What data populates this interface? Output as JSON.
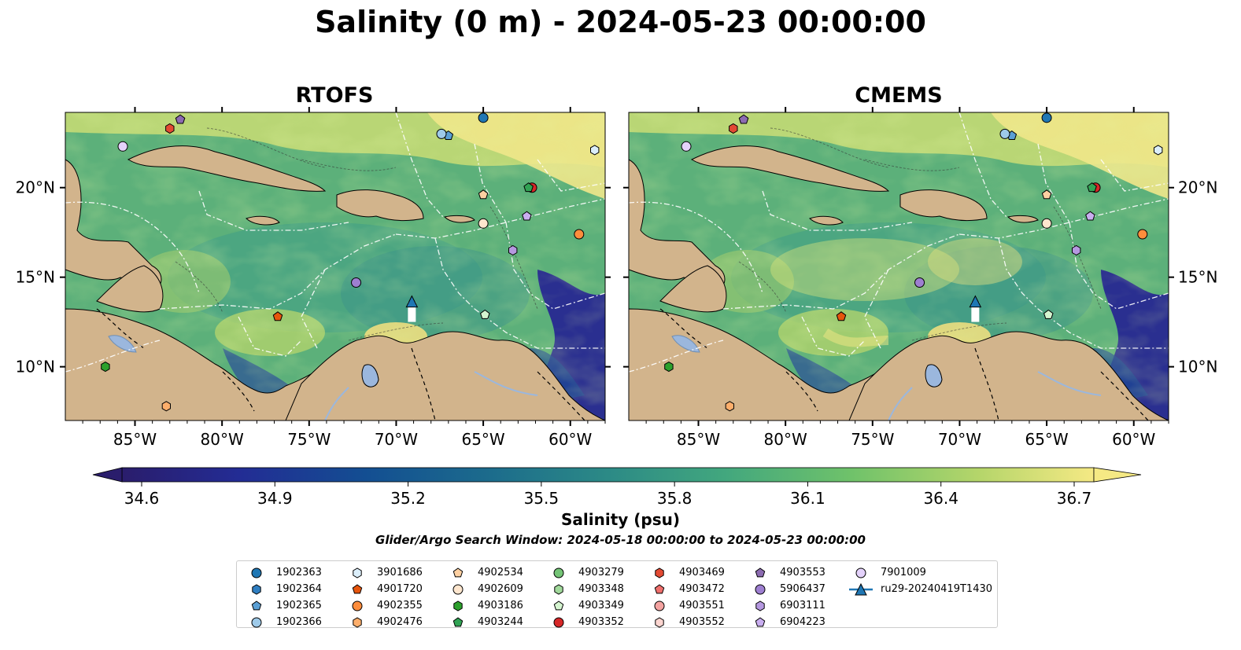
{
  "title": "Salinity (0 m) - 2024-05-23 00:00:00",
  "panels": [
    {
      "title": "RTOFS"
    },
    {
      "title": "CMEMS"
    }
  ],
  "axes": {
    "lon_ticks": [
      "85°W",
      "80°W",
      "75°W",
      "70°W",
      "65°W",
      "60°W"
    ],
    "lat_ticks": [
      "20°N",
      "15°N",
      "10°N"
    ],
    "lon_range": [
      -89,
      -58
    ],
    "lat_range": [
      7,
      24.2
    ]
  },
  "colorbar": {
    "label": "Salinity (psu)",
    "ticks": [
      "34.6",
      "34.9",
      "35.2",
      "35.5",
      "35.8",
      "36.1",
      "36.4",
      "36.7"
    ],
    "range": [
      34.6,
      36.7
    ],
    "colormap": "viridis-haline (navy to yellow)",
    "extend": "both"
  },
  "colors": {
    "land": "#d2b48c",
    "lake": "#9bb7dd",
    "salinity_low": "#2a1d6c",
    "salinity_high": "#f5e984"
  },
  "search_window": "Glider/Argo Search Window: 2024-05-18 00:00:00 to 2024-05-23 00:00:00",
  "legend": [
    {
      "label": "1902363",
      "marker": "circle",
      "color": "#1f77b4"
    },
    {
      "label": "1902364",
      "marker": "hexagon",
      "color": "#2f7ec1"
    },
    {
      "label": "1902365",
      "marker": "pentagon",
      "color": "#5a9fd4"
    },
    {
      "label": "1902366",
      "marker": "circle",
      "color": "#9ecae9"
    },
    {
      "label": "3901686",
      "marker": "hexagon",
      "color": "#dbeefa"
    },
    {
      "label": "4901720",
      "marker": "pentagon",
      "color": "#e6550d"
    },
    {
      "label": "4902355",
      "marker": "circle",
      "color": "#fd8d3c"
    },
    {
      "label": "4902476",
      "marker": "hexagon",
      "color": "#fdae6b"
    },
    {
      "label": "4902534",
      "marker": "pentagon",
      "color": "#fdd0a2"
    },
    {
      "label": "4902609",
      "marker": "circle",
      "color": "#fee6ce"
    },
    {
      "label": "4903186",
      "marker": "hexagon",
      "color": "#2ca02c"
    },
    {
      "label": "4903244",
      "marker": "pentagon",
      "color": "#31a354"
    },
    {
      "label": "4903279",
      "marker": "circle",
      "color": "#74c476"
    },
    {
      "label": "4903348",
      "marker": "hexagon",
      "color": "#a1d99b"
    },
    {
      "label": "4903349",
      "marker": "pentagon",
      "color": "#d5f5d0"
    },
    {
      "label": "4903352",
      "marker": "circle",
      "color": "#d62728"
    },
    {
      "label": "4903469",
      "marker": "hexagon",
      "color": "#e34a33"
    },
    {
      "label": "4903472",
      "marker": "pentagon",
      "color": "#ef6f6c"
    },
    {
      "label": "4903551",
      "marker": "circle",
      "color": "#f4a3a1"
    },
    {
      "label": "4903552",
      "marker": "hexagon",
      "color": "#fcd5d0"
    },
    {
      "label": "4903553",
      "marker": "pentagon",
      "color": "#8c6bb1"
    },
    {
      "label": "5906437",
      "marker": "circle",
      "color": "#9e7fd1"
    },
    {
      "label": "6903111",
      "marker": "hexagon",
      "color": "#b598e0"
    },
    {
      "label": "6904223",
      "marker": "pentagon",
      "color": "#c9aef0"
    },
    {
      "label": "7901009",
      "marker": "circle",
      "color": "#e4d2fb"
    },
    {
      "label": "ru29-20240419T1430",
      "marker": "triangle-line",
      "color": "#1f77b4"
    }
  ],
  "floats": [
    {
      "label": "1902363",
      "lon": -65,
      "lat": 23.9
    },
    {
      "label": "1902365",
      "lon": -67.0,
      "lat": 22.9
    },
    {
      "label": "1902366",
      "lon": -67.4,
      "lat": 23.0
    },
    {
      "label": "3901686",
      "lon": -58.6,
      "lat": 22.1
    },
    {
      "label": "4902534",
      "lon": -65.0,
      "lat": 19.6
    },
    {
      "label": "4903352",
      "lon": -62.2,
      "lat": 20.0
    },
    {
      "label": "4903244",
      "lon": -62.4,
      "lat": 20.0
    },
    {
      "label": "6904223",
      "lon": -62.5,
      "lat": 18.4
    },
    {
      "label": "4902609",
      "lon": -65.0,
      "lat": 18.0
    },
    {
      "label": "4902355",
      "lon": -59.5,
      "lat": 17.4
    },
    {
      "label": "6903111",
      "lon": -63.3,
      "lat": 16.5
    },
    {
      "label": "5906437",
      "lon": -72.3,
      "lat": 14.7
    },
    {
      "label": "4901720",
      "lon": -76.8,
      "lat": 12.8
    },
    {
      "label": "4903349",
      "lon": -64.9,
      "lat": 12.9
    },
    {
      "label": "4903186",
      "lon": -86.7,
      "lat": 10.0
    },
    {
      "label": "4902476",
      "lon": -83.2,
      "lat": 7.8
    },
    {
      "label": "4903469",
      "lon": -83.0,
      "lat": 23.3
    },
    {
      "label": "4903553",
      "lon": -82.4,
      "lat": 23.8
    },
    {
      "label": "7901009",
      "lon": -85.7,
      "lat": 22.3
    },
    {
      "label": "ru29-20240419T1430",
      "lon": -69.1,
      "lat": 13.6
    }
  ]
}
